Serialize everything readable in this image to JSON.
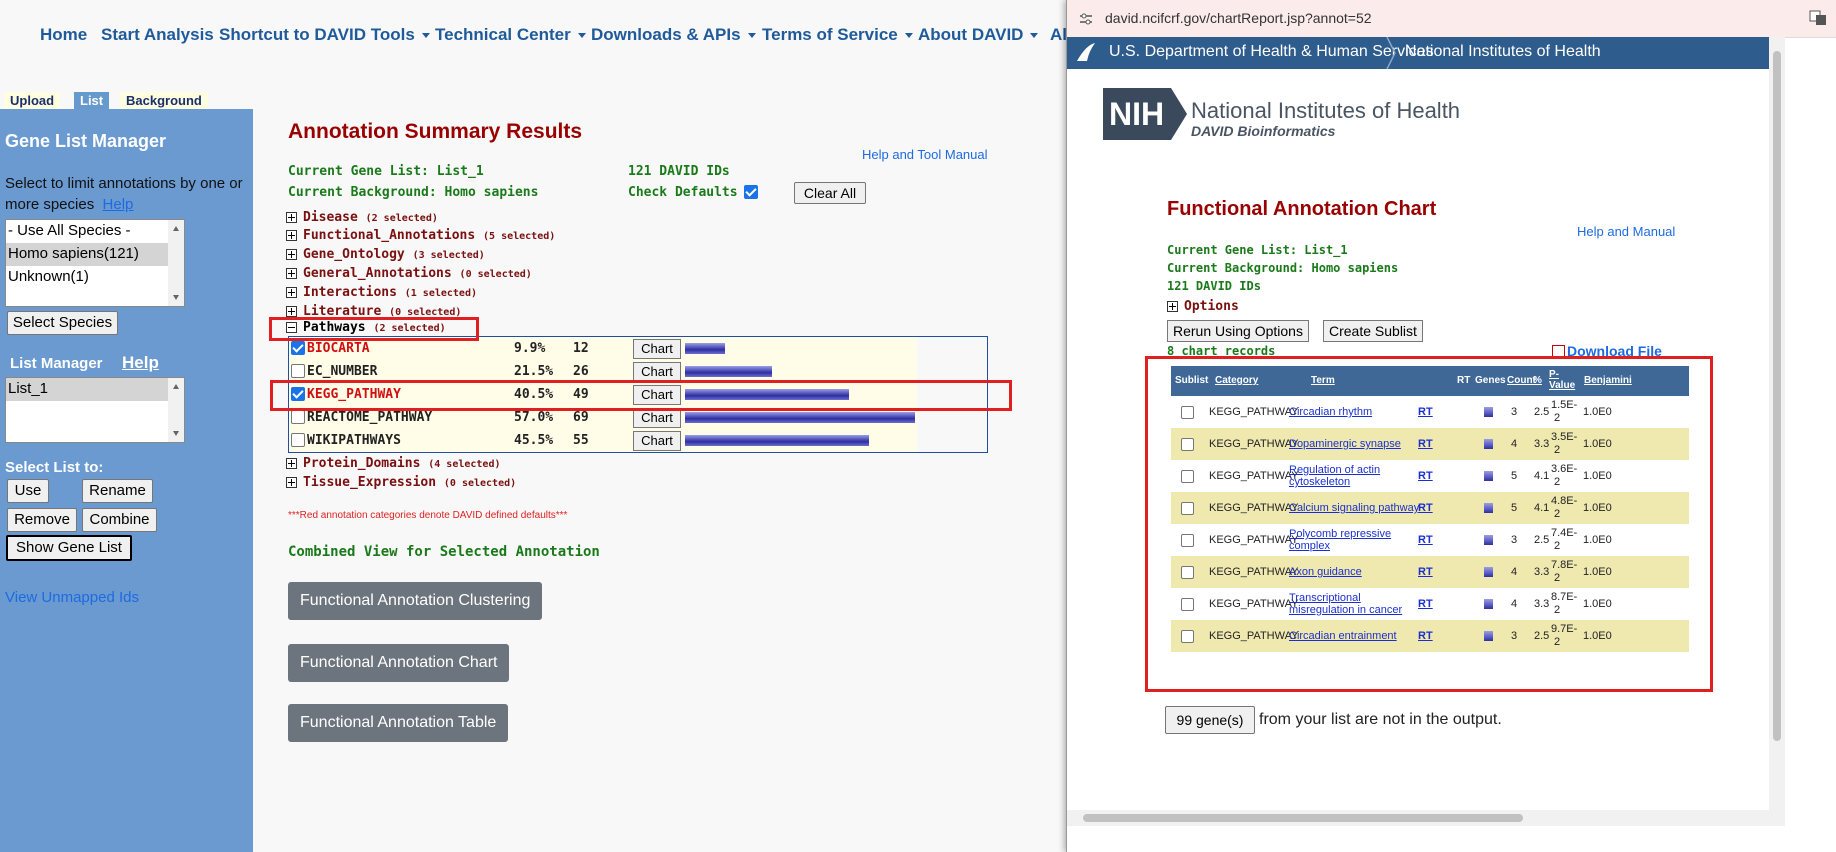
{
  "nav": {
    "home": "Home",
    "start": "Start Analysis",
    "shortcut": "Shortcut to DAVID Tools",
    "technical": "Technical Center",
    "downloads": "Downloads & APIs",
    "terms": "Terms of Service",
    "about": "About DAVID",
    "cut": "Al"
  },
  "tabs": {
    "upload": "Upload",
    "list": "List",
    "background": "Background"
  },
  "sidebar": {
    "title": "Gene List Manager",
    "instruction": "Select to limit annotations by one or more species",
    "help": "Help",
    "species": [
      "- Use All Species -",
      "Homo sapiens(121)",
      "Unknown(1)"
    ],
    "select_species": "Select Species",
    "list_manager": "List Manager",
    "list_help": "Help",
    "lists": [
      "List_1"
    ],
    "select_list": "Select List to:",
    "use": "Use",
    "rename": "Rename",
    "remove": "Remove",
    "combine": "Combine",
    "show_gene_list": "Show Gene List",
    "view_unmapped": "View Unmapped Ids"
  },
  "main": {
    "title": "Annotation Summary Results",
    "help_manual": "Help and Tool Manual",
    "current_gene_list": "Current Gene List: List_1",
    "ids": "121 DAVID IDs",
    "current_background": "Current Background: Homo sapiens",
    "check_defaults": "Check Defaults",
    "clear_all": "Clear All",
    "categories": [
      {
        "name": "Disease",
        "sel": "(2 selected)"
      },
      {
        "name": "Functional_Annotations",
        "sel": "(5 selected)"
      },
      {
        "name": "Gene_Ontology",
        "sel": "(3 selected)"
      },
      {
        "name": "General_Annotations",
        "sel": "(0 selected)"
      },
      {
        "name": "Interactions",
        "sel": "(1 selected)"
      },
      {
        "name": "Literature",
        "sel": "(0 selected)"
      },
      {
        "name": "Pathways",
        "sel": "(2 selected)"
      },
      {
        "name": "Protein_Domains",
        "sel": "(4 selected)"
      },
      {
        "name": "Tissue_Expression",
        "sel": "(0 selected)"
      }
    ],
    "pathways": [
      {
        "name": "BIOCARTA",
        "pct": "9.9%",
        "count": "12",
        "checked": true,
        "red": true,
        "bar": 0.099
      },
      {
        "name": "EC_NUMBER",
        "pct": "21.5%",
        "count": "26",
        "checked": false,
        "red": false,
        "bar": 0.215
      },
      {
        "name": "KEGG_PATHWAY",
        "pct": "40.5%",
        "count": "49",
        "checked": true,
        "red": true,
        "bar": 0.405
      },
      {
        "name": "REACTOME_PATHWAY",
        "pct": "57.0%",
        "count": "69",
        "checked": false,
        "red": false,
        "bar": 0.57
      },
      {
        "name": "WIKIPATHWAYS",
        "pct": "45.5%",
        "count": "55",
        "checked": false,
        "red": false,
        "bar": 0.455
      }
    ],
    "chart_label": "Chart",
    "note": "***Red annotation categories denote DAVID defined defaults***",
    "combined_view": "Combined View for Selected Annotation",
    "btn_clustering": "Functional Annotation Clustering",
    "btn_chart": "Functional Annotation Chart",
    "btn_table": "Functional Annotation Table"
  },
  "popup": {
    "url": "david.ncifcrf.gov/chartReport.jsp?annot=52",
    "hhs": "U.S. Department of Health & Human Services",
    "nih": "National Institutes of Health",
    "logo": "NIH",
    "logo_name": "National Institutes of Health",
    "logo_sub": "DAVID Bioinformatics",
    "title": "Functional Annotation Chart",
    "help": "Help and Manual",
    "gene_list": "Current Gene List: List_1",
    "background": "Current Background: Homo sapiens",
    "ids": "121 DAVID IDs",
    "options": "Options",
    "rerun": "Rerun Using Options",
    "sublist": "Create Sublist",
    "records": "8 chart records",
    "download": "Download File",
    "headers": {
      "sublist": "Sublist",
      "category": "Category",
      "term": "Term",
      "rt": "RT",
      "genes": "Genes",
      "count": "Count",
      "pct": "%",
      "pvalue": "P-Value",
      "benjamini": "Benjamini"
    },
    "rows": [
      {
        "category": "KEGG_PATHWAY",
        "term": "Circadian rhythm",
        "rt": "RT",
        "count": "3",
        "pct": "2.5",
        "p1": "1.5E-",
        "p2": "2",
        "benj": "1.0E0"
      },
      {
        "category": "KEGG_PATHWAY",
        "term": "Dopaminergic synapse",
        "rt": "RT",
        "count": "4",
        "pct": "3.3",
        "p1": "3.5E-",
        "p2": "2",
        "benj": "1.0E0"
      },
      {
        "category": "KEGG_PATHWAY",
        "term": "Regulation of actin cytoskeleton",
        "rt": "RT",
        "count": "5",
        "pct": "4.1",
        "p1": "3.6E-",
        "p2": "2",
        "benj": "1.0E0"
      },
      {
        "category": "KEGG_PATHWAY",
        "term": "Calcium signaling pathway",
        "rt": "RT",
        "count": "5",
        "pct": "4.1",
        "p1": "4.8E-",
        "p2": "2",
        "benj": "1.0E0"
      },
      {
        "category": "KEGG_PATHWAY",
        "term": "Polycomb repressive complex",
        "rt": "RT",
        "count": "3",
        "pct": "2.5",
        "p1": "7.4E-",
        "p2": "2",
        "benj": "1.0E0"
      },
      {
        "category": "KEGG_PATHWAY",
        "term": "Axon guidance",
        "rt": "RT",
        "count": "4",
        "pct": "3.3",
        "p1": "7.8E-",
        "p2": "2",
        "benj": "1.0E0"
      },
      {
        "category": "KEGG_PATHWAY",
        "term": "Transcriptional misregulation in cancer",
        "rt": "RT",
        "count": "4",
        "pct": "3.3",
        "p1": "8.7E-",
        "p2": "2",
        "benj": "1.0E0"
      },
      {
        "category": "KEGG_PATHWAY",
        "term": "Circadian entrainment",
        "rt": "RT",
        "count": "3",
        "pct": "2.5",
        "p1": "9.7E-",
        "p2": "2",
        "benj": "1.0E0"
      }
    ],
    "genes_btn": "99 gene(s)",
    "not_in_output": "from your list are not in the output."
  }
}
